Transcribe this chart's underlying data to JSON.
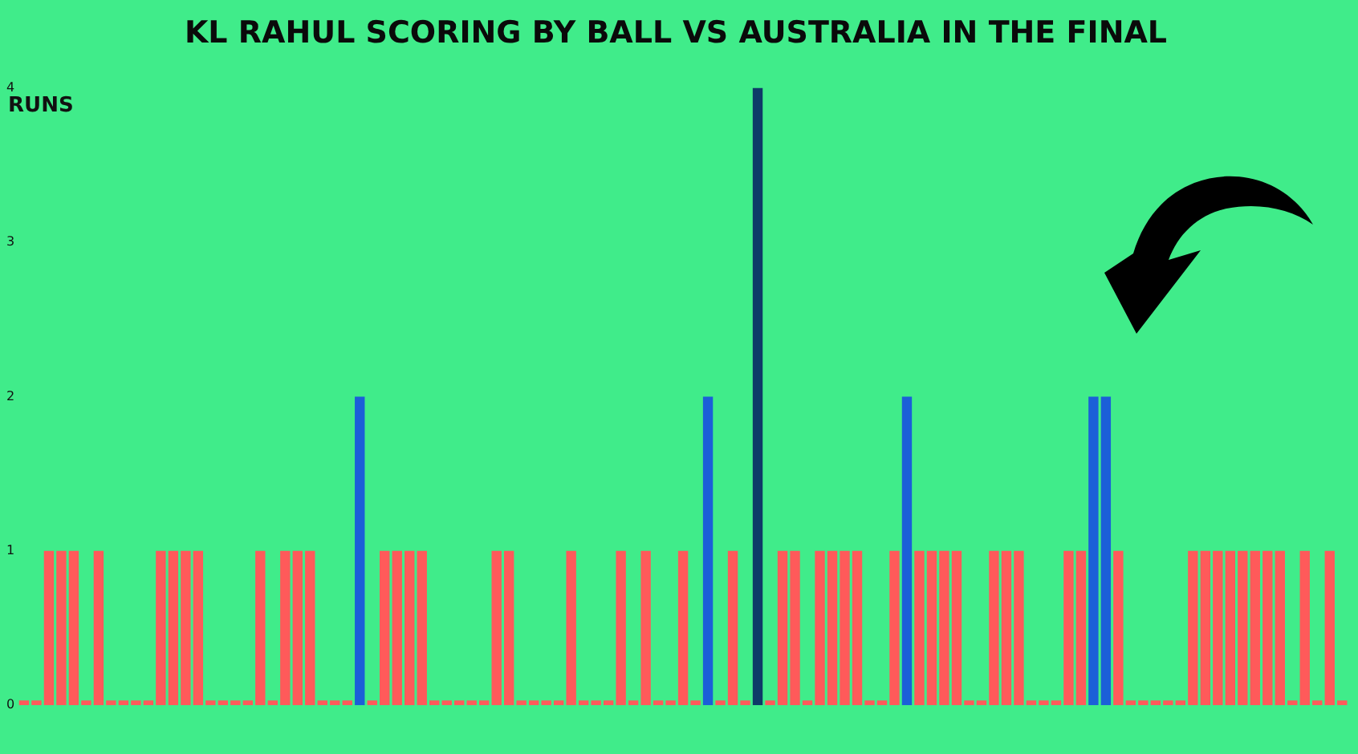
{
  "chart_data": {
    "type": "bar",
    "title": "KL RAHUL SCORING BY BALL VS AUSTRALIA IN THE FINAL",
    "ylabel": "RUNS",
    "categories": [
      null,
      null,
      null,
      null,
      null,
      null,
      null,
      null,
      null,
      null,
      null,
      null,
      null,
      null,
      null,
      null,
      null,
      null,
      null,
      null,
      null,
      null,
      null,
      null,
      null,
      null,
      null,
      null,
      null,
      null,
      null,
      null,
      null,
      null,
      null,
      null,
      null,
      null,
      null,
      null,
      null,
      null,
      null,
      null,
      null,
      null,
      null,
      null,
      null,
      null,
      null,
      null,
      null,
      null,
      null,
      null,
      null,
      null,
      null,
      null,
      null,
      null,
      null,
      null,
      null,
      null,
      null,
      null,
      null,
      null,
      null,
      null,
      null,
      null,
      null,
      null,
      null,
      null,
      null,
      null,
      null,
      null,
      null,
      null,
      null,
      null,
      null,
      null,
      null,
      null,
      null,
      null,
      null,
      null,
      null,
      null,
      null,
      null,
      null,
      null,
      null,
      null,
      null,
      null,
      null,
      null,
      null
    ],
    "values": [
      0,
      0,
      1,
      1,
      1,
      0,
      1,
      0,
      0,
      0,
      0,
      1,
      1,
      1,
      1,
      0,
      0,
      0,
      0,
      1,
      0,
      1,
      1,
      1,
      0,
      0,
      0,
      2,
      0,
      1,
      1,
      1,
      1,
      0,
      0,
      0,
      0,
      0,
      1,
      1,
      0,
      0,
      0,
      0,
      1,
      0,
      0,
      0,
      1,
      0,
      1,
      0,
      0,
      1,
      0,
      2,
      0,
      1,
      0,
      4,
      0,
      1,
      1,
      0,
      1,
      1,
      1,
      1,
      0,
      0,
      1,
      2,
      1,
      1,
      1,
      1,
      0,
      0,
      1,
      1,
      1,
      0,
      0,
      0,
      1,
      1,
      2,
      2,
      1,
      0,
      0,
      0,
      0,
      0,
      1,
      1,
      1,
      1,
      1,
      1,
      1,
      1,
      0,
      1,
      0,
      1,
      0
    ],
    "colors": [
      "#ff5a5a",
      "#ff5a5a",
      "#ff5a5a",
      "#ff5a5a",
      "#ff5a5a",
      "#ff5a5a",
      "#ff5a5a",
      "#ff5a5a",
      "#ff5a5a",
      "#ff5a5a",
      "#ff5a5a",
      "#ff5a5a",
      "#ff5a5a",
      "#ff5a5a",
      "#ff5a5a",
      "#ff5a5a",
      "#ff5a5a",
      "#ff5a5a",
      "#ff5a5a",
      "#ff5a5a",
      "#ff5a5a",
      "#ff5a5a",
      "#ff5a5a",
      "#ff5a5a",
      "#ff5a5a",
      "#ff5a5a",
      "#ff5a5a",
      "#1b5fd8",
      "#ff5a5a",
      "#ff5a5a",
      "#ff5a5a",
      "#ff5a5a",
      "#ff5a5a",
      "#ff5a5a",
      "#ff5a5a",
      "#ff5a5a",
      "#ff5a5a",
      "#ff5a5a",
      "#ff5a5a",
      "#ff5a5a",
      "#ff5a5a",
      "#ff5a5a",
      "#ff5a5a",
      "#ff5a5a",
      "#ff5a5a",
      "#ff5a5a",
      "#ff5a5a",
      "#ff5a5a",
      "#ff5a5a",
      "#ff5a5a",
      "#ff5a5a",
      "#ff5a5a",
      "#ff5a5a",
      "#ff5a5a",
      "#ff5a5a",
      "#1b5fd8",
      "#ff5a5a",
      "#ff5a5a",
      "#ff5a5a",
      "#0e3a68",
      "#ff5a5a",
      "#ff5a5a",
      "#ff5a5a",
      "#ff5a5a",
      "#ff5a5a",
      "#ff5a5a",
      "#ff5a5a",
      "#ff5a5a",
      "#ff5a5a",
      "#ff5a5a",
      "#ff5a5a",
      "#1b5fd8",
      "#ff5a5a",
      "#ff5a5a",
      "#ff5a5a",
      "#ff5a5a",
      "#ff5a5a",
      "#ff5a5a",
      "#ff5a5a",
      "#ff5a5a",
      "#ff5a5a",
      "#ff5a5a",
      "#ff5a5a",
      "#ff5a5a",
      "#ff5a5a",
      "#ff5a5a",
      "#1b5fd8",
      "#1b5fd8",
      "#ff5a5a",
      "#ff5a5a",
      "#ff5a5a",
      "#ff5a5a",
      "#ff5a5a",
      "#ff5a5a",
      "#ff5a5a",
      "#ff5a5a",
      "#ff5a5a",
      "#ff5a5a",
      "#ff5a5a",
      "#ff5a5a",
      "#ff5a5a",
      "#ff5a5a",
      "#ff5a5a",
      "#ff5a5a",
      "#ff5a5a",
      "#ff5a5a",
      "#ff5a5a"
    ],
    "ylim": [
      0,
      4
    ],
    "yticks": [
      0,
      1,
      2,
      3,
      4
    ],
    "grid": false,
    "legend": false
  }
}
